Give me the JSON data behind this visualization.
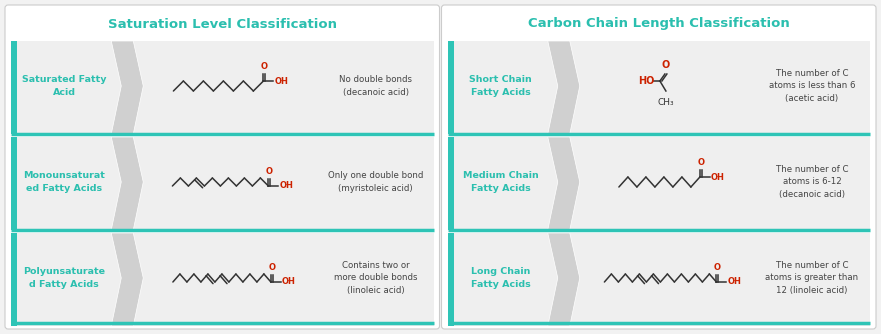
{
  "bg_color": "#f2f2f2",
  "panel_bg": "#ffffff",
  "row_bg": "#efefef",
  "teal": "#2ec4b6",
  "teal_text": "#2bbfaf",
  "dark_text": "#555555",
  "title_left": "Saturation Level Classification",
  "title_right": "Carbon Chain Length Classification",
  "left_rows": [
    {
      "label": "Saturated Fatty\nAcid",
      "description": "No double bonds\n(decanoic acid)",
      "mol_type": "saturated"
    },
    {
      "label": "Monounsaturat\ned Fatty Acids",
      "description": "Only one double bond\n(myristoleic acid)",
      "mol_type": "mono"
    },
    {
      "label": "Polyunsaturate\nd Fatty Acids",
      "description": "Contains two or\nmore double bonds\n(linoleic acid)",
      "mol_type": "poly"
    }
  ],
  "right_rows": [
    {
      "label": "Short Chain\nFatty Acids",
      "description": "The number of C\natoms is less than 6\n(acetic acid)",
      "mol_type": "short"
    },
    {
      "label": "Medium Chain\nFatty Acids",
      "description": "The number of C\natoms is 6-12\n(decanoic acid)",
      "mol_type": "medium"
    },
    {
      "label": "Long Chain\nFatty Acids",
      "description": "The number of C\natoms is greater than\n12 (linoleic acid)",
      "mol_type": "long"
    }
  ]
}
